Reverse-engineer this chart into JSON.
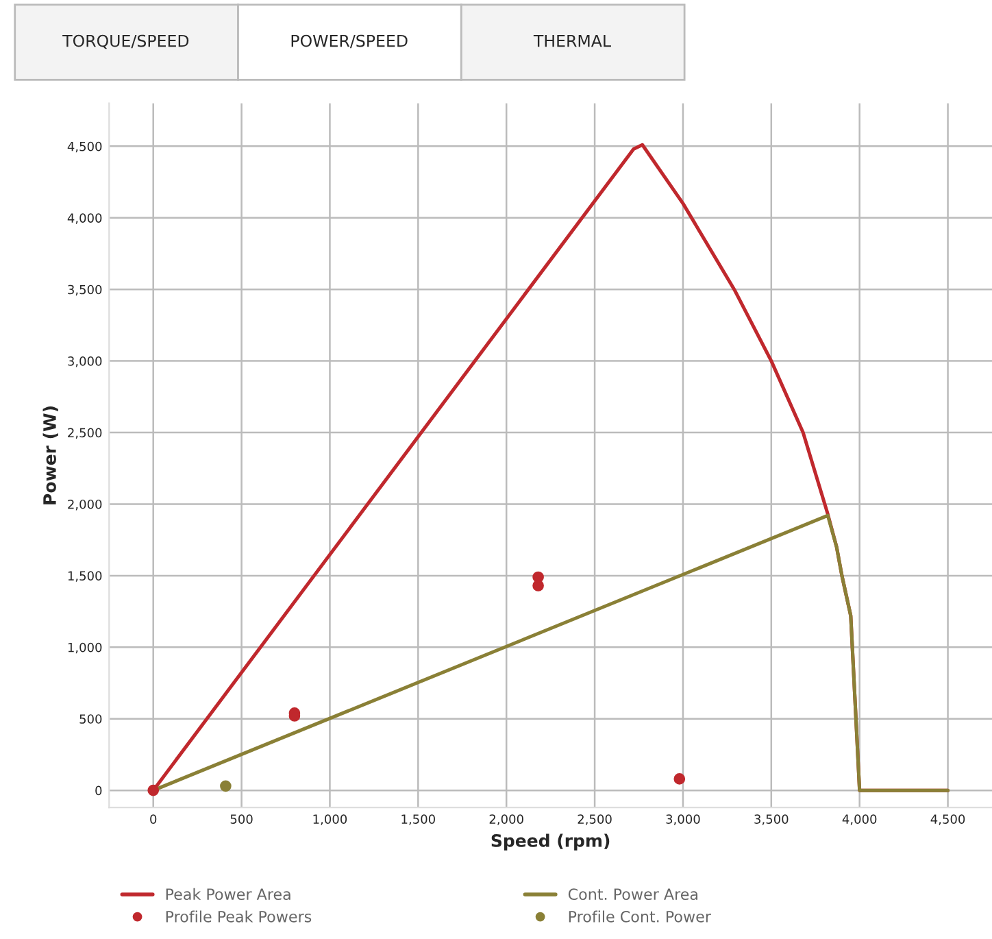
{
  "chart_data": {
    "type": "line",
    "annotations": [
      "TORQUE/SPEED",
      "POWER/SPEED",
      "THERMAL"
    ],
    "xlabel": "Speed (rpm)",
    "ylabel": "Power (W)",
    "xlim": [
      -250,
      4750
    ],
    "ylim": [
      -120,
      4800
    ],
    "xticks": [
      0,
      500,
      {
        "value": 1000,
        "label": "1,000"
      },
      {
        "value": 1500,
        "label": "1,500"
      },
      {
        "value": 2000,
        "label": "2,000"
      },
      {
        "value": 2500,
        "label": "2,500"
      },
      {
        "value": 3000,
        "label": "3,000"
      },
      {
        "value": 3500,
        "label": "3,500"
      },
      {
        "value": 4000,
        "label": "4,000"
      },
      {
        "value": 4500,
        "label": "4,500"
      }
    ],
    "yticks": [
      0,
      500,
      {
        "value": 1000,
        "label": "1,000"
      },
      {
        "value": 1500,
        "label": "1,500"
      },
      {
        "value": 2000,
        "label": "2,000"
      },
      {
        "value": 2500,
        "label": "2,500"
      },
      {
        "value": 3000,
        "label": "3,000"
      },
      {
        "value": 3500,
        "label": "3,500"
      },
      {
        "value": 4000,
        "label": "4,000"
      },
      {
        "value": 4500,
        "label": "4,500"
      }
    ],
    "grid": true,
    "legend": "bottom",
    "series": [
      {
        "name": "Peak Power Area",
        "color": "#c0282d",
        "x": [
          0,
          2720,
          2770,
          3000,
          3290,
          3500,
          3680,
          3820,
          3870,
          3900,
          3950,
          4000,
          4500
        ],
        "values": [
          0,
          4480,
          4510,
          4100,
          3500,
          3000,
          2500,
          1930,
          1700,
          1500,
          1220,
          0,
          0
        ]
      },
      {
        "name": "Profile Peak Powers",
        "type": "scatter",
        "marker": "circle",
        "color": "#c0282d",
        "x": [
          0,
          800,
          800,
          2180,
          2180,
          2980
        ],
        "values": [
          0,
          540,
          520,
          1490,
          1430,
          80
        ]
      },
      {
        "name": "Cont. Power Area",
        "color": "#8a8036",
        "x": [
          0,
          3820,
          3870,
          3900,
          3950,
          4000,
          4500
        ],
        "values": [
          0,
          1920,
          1700,
          1500,
          1220,
          0,
          0
        ]
      },
      {
        "name": "Profile Cont. Power",
        "type": "scatter",
        "marker": "circle",
        "color": "#8a8036",
        "x": [
          410
        ],
        "values": [
          30
        ]
      }
    ]
  }
}
